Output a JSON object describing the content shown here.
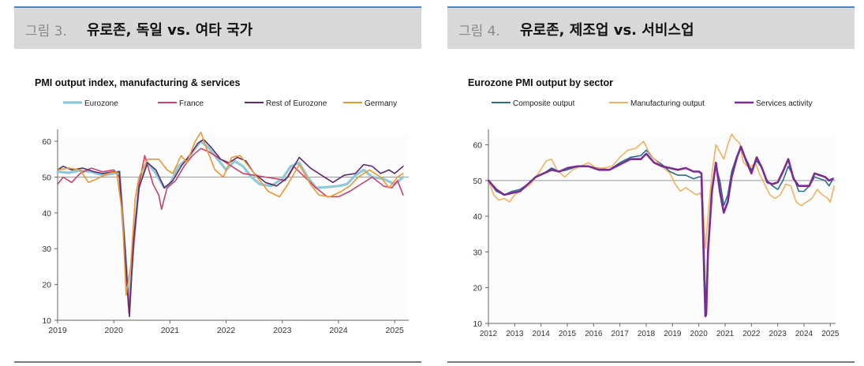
{
  "figures": [
    {
      "number_label": "그림 3.",
      "title": "유로존, 독일 vs. 여타 국가"
    },
    {
      "number_label": "그림 4.",
      "title": "유로존, 제조업 vs. 서비스업"
    }
  ],
  "chart_data": [
    {
      "type": "line",
      "title": "PMI output index, manufacturing & services",
      "xlabel": "",
      "ylabel": "",
      "xlim": [
        2019.0,
        2025.25
      ],
      "ylim": [
        10,
        62
      ],
      "yticks": [
        10,
        20,
        30,
        40,
        50,
        60
      ],
      "xticks": [
        2019,
        2020,
        2021,
        2022,
        2023,
        2024,
        2025
      ],
      "reference_line": 50,
      "legend_position": "top",
      "series": [
        {
          "name": "Eurozone",
          "color": "#8ec9d8",
          "width": 3.2,
          "x": [
            2019.0,
            2019.2,
            2019.4,
            2019.6,
            2019.8,
            2020.0,
            2020.1,
            2020.2,
            2020.27,
            2020.35,
            2020.45,
            2020.6,
            2020.75,
            2020.9,
            2021.0,
            2021.15,
            2021.3,
            2021.45,
            2021.55,
            2021.7,
            2021.85,
            2022.0,
            2022.15,
            2022.3,
            2022.45,
            2022.6,
            2022.8,
            2023.0,
            2023.15,
            2023.3,
            2023.45,
            2023.6,
            2023.8,
            2024.0,
            2024.15,
            2024.3,
            2024.45,
            2024.6,
            2024.8,
            2025.0,
            2025.15
          ],
          "y": [
            51.5,
            51.2,
            51.8,
            51.5,
            50.5,
            51,
            51.5,
            30,
            14,
            31,
            48,
            54,
            51,
            47,
            48,
            53,
            55,
            58,
            60,
            58,
            55,
            52,
            54.5,
            53,
            50,
            48,
            47.5,
            49.5,
            53,
            54,
            50,
            47,
            47.2,
            47.5,
            48,
            50.5,
            52,
            50,
            49.5,
            48,
            50
          ]
        },
        {
          "name": "France",
          "color": "#cf3f6c",
          "width": 1.6,
          "x": [
            2019.0,
            2019.1,
            2019.25,
            2019.4,
            2019.6,
            2019.8,
            2020.0,
            2020.1,
            2020.2,
            2020.27,
            2020.35,
            2020.45,
            2020.55,
            2020.7,
            2020.8,
            2020.85,
            2020.95,
            2021.1,
            2021.25,
            2021.4,
            2021.55,
            2021.7,
            2021.9,
            2022.1,
            2022.3,
            2022.5,
            2022.7,
            2022.9,
            2023.05,
            2023.2,
            2023.4,
            2023.6,
            2023.8,
            2024.0,
            2024.2,
            2024.4,
            2024.6,
            2024.8,
            2024.95,
            2025.05,
            2025.15
          ],
          "y": [
            48,
            50,
            48.5,
            51,
            52.5,
            51.5,
            52,
            50,
            28,
            12,
            30,
            48,
            56,
            48,
            45,
            41,
            47,
            49,
            53,
            56,
            58,
            57,
            55,
            53,
            51,
            50.5,
            50,
            49.5,
            49,
            53,
            50,
            47,
            44.5,
            44.5,
            46,
            48,
            50,
            47.5,
            47,
            49,
            45
          ]
        },
        {
          "name": "Rest of Eurozone",
          "color": "#5b2d6e",
          "width": 1.6,
          "x": [
            2019.0,
            2019.1,
            2019.25,
            2019.45,
            2019.65,
            2019.8,
            2020.0,
            2020.1,
            2020.2,
            2020.28,
            2020.35,
            2020.45,
            2020.6,
            2020.75,
            2020.9,
            2021.05,
            2021.2,
            2021.35,
            2021.5,
            2021.6,
            2021.75,
            2021.9,
            2022.05,
            2022.2,
            2022.35,
            2022.5,
            2022.7,
            2022.9,
            2023.1,
            2023.3,
            2023.5,
            2023.7,
            2023.9,
            2024.1,
            2024.3,
            2024.45,
            2024.6,
            2024.75,
            2024.9,
            2025.0,
            2025.15
          ],
          "y": [
            52,
            53,
            52,
            52.5,
            51.5,
            51,
            51.5,
            51.5,
            30,
            11,
            32,
            47,
            54,
            52,
            47,
            49,
            53,
            56,
            59.5,
            60.5,
            58,
            55,
            54,
            55.5,
            54.5,
            51,
            48.5,
            47.5,
            50,
            55.5,
            52.5,
            50.5,
            48.5,
            50.5,
            51,
            53.5,
            53,
            51,
            52,
            51,
            53
          ]
        },
        {
          "name": "Germany",
          "color": "#f0962e",
          "width": 1.6,
          "x": [
            2019.0,
            2019.2,
            2019.4,
            2019.55,
            2019.7,
            2019.9,
            2020.05,
            2020.15,
            2020.22,
            2020.3,
            2020.38,
            2020.45,
            2020.6,
            2020.8,
            2020.95,
            2021.05,
            2021.2,
            2021.3,
            2021.45,
            2021.55,
            2021.65,
            2021.8,
            2021.95,
            2022.1,
            2022.25,
            2022.4,
            2022.55,
            2022.75,
            2022.95,
            2023.1,
            2023.3,
            2023.5,
            2023.65,
            2023.85,
            2024.05,
            2024.2,
            2024.35,
            2024.55,
            2024.75,
            2024.9,
            2025.05,
            2025.15
          ],
          "y": [
            52,
            52.5,
            52,
            48.5,
            49.5,
            51,
            51.5,
            40,
            17,
            25,
            44,
            50,
            55,
            55,
            52,
            51,
            56,
            54,
            60,
            62.5,
            58,
            52,
            50,
            55.5,
            56,
            53,
            50,
            46,
            44.5,
            48,
            53.5,
            48,
            45,
            44.5,
            46,
            47.5,
            50,
            52,
            50,
            47,
            50,
            51
          ]
        }
      ]
    },
    {
      "type": "line",
      "title": "Eurozone PMI output by sector",
      "xlabel": "",
      "ylabel": "",
      "xlim": [
        2012.0,
        2025.2
      ],
      "ylim": [
        10,
        63
      ],
      "yticks": [
        10,
        20,
        30,
        40,
        50,
        60
      ],
      "xticks": [
        2012,
        2013,
        2014,
        2015,
        2016,
        2017,
        2018,
        2019,
        2020,
        2021,
        2022,
        2023,
        2024,
        2025
      ],
      "reference_line": 50,
      "legend_position": "top",
      "series": [
        {
          "name": "Composite output",
          "color": "#2a6f8f",
          "width": 1.6,
          "x": [
            2012.0,
            2012.3,
            2012.6,
            2012.9,
            2013.2,
            2013.5,
            2013.8,
            2014.1,
            2014.4,
            2014.7,
            2015.0,
            2015.4,
            2015.8,
            2016.2,
            2016.6,
            2017.0,
            2017.4,
            2017.8,
            2018.0,
            2018.3,
            2018.6,
            2018.9,
            2019.2,
            2019.5,
            2019.8,
            2020.0,
            2020.1,
            2020.2,
            2020.27,
            2020.35,
            2020.5,
            2020.65,
            2020.8,
            2020.95,
            2021.1,
            2021.25,
            2021.45,
            2021.6,
            2021.8,
            2022.0,
            2022.2,
            2022.4,
            2022.6,
            2022.8,
            2023.0,
            2023.2,
            2023.4,
            2023.6,
            2023.8,
            2024.0,
            2024.2,
            2024.4,
            2024.6,
            2024.8,
            2024.95,
            2025.1
          ],
          "y": [
            50,
            47,
            46,
            47,
            47.5,
            49,
            51,
            52,
            53.5,
            52.5,
            53,
            54,
            54,
            53.5,
            53,
            55,
            56.5,
            57,
            58.5,
            56,
            54.5,
            52.5,
            51.5,
            51.5,
            50.5,
            51,
            51,
            30,
            13.5,
            32,
            48,
            54,
            50,
            43,
            46,
            52.5,
            57,
            59,
            56,
            53,
            55.5,
            53.5,
            50,
            48.5,
            47.5,
            50,
            54,
            51,
            47,
            47,
            48.5,
            51,
            50.5,
            50,
            48.5,
            50.5
          ]
        },
        {
          "name": "Manufacturing output",
          "color": "#f2b25f",
          "width": 1.6,
          "x": [
            2012.0,
            2012.2,
            2012.4,
            2012.6,
            2012.8,
            2013.0,
            2013.3,
            2013.6,
            2013.9,
            2014.2,
            2014.4,
            2014.6,
            2014.9,
            2015.2,
            2015.5,
            2015.8,
            2016.1,
            2016.4,
            2016.7,
            2017.0,
            2017.3,
            2017.6,
            2017.9,
            2018.1,
            2018.3,
            2018.6,
            2018.9,
            2019.1,
            2019.3,
            2019.5,
            2019.7,
            2019.9,
            2020.05,
            2020.15,
            2020.25,
            2020.35,
            2020.5,
            2020.65,
            2020.8,
            2020.95,
            2021.1,
            2021.25,
            2021.4,
            2021.55,
            2021.7,
            2021.85,
            2022.0,
            2022.15,
            2022.3,
            2022.5,
            2022.7,
            2022.9,
            2023.1,
            2023.3,
            2023.5,
            2023.7,
            2023.9,
            2024.1,
            2024.3,
            2024.5,
            2024.7,
            2024.9,
            2025.0,
            2025.15
          ],
          "y": [
            50,
            46,
            44.5,
            45,
            44,
            46,
            47.5,
            49,
            52,
            55.5,
            56,
            53,
            51,
            53,
            54,
            55,
            53.5,
            53.5,
            54,
            56.5,
            58.5,
            59,
            61,
            58,
            56,
            54,
            52,
            49,
            47,
            48,
            47,
            46,
            46.5,
            44,
            31,
            40,
            52,
            60,
            58,
            56,
            60,
            63,
            61.5,
            60.5,
            55,
            54,
            54,
            55,
            52,
            49,
            46,
            45,
            46,
            49,
            48.5,
            44,
            43,
            44,
            45,
            47.5,
            46,
            45,
            44,
            48.5
          ]
        },
        {
          "name": "Services activity",
          "color": "#7b2c93",
          "width": 2.6,
          "x": [
            2012.0,
            2012.3,
            2012.6,
            2012.9,
            2013.2,
            2013.5,
            2013.8,
            2014.1,
            2014.4,
            2014.7,
            2015.0,
            2015.4,
            2015.8,
            2016.2,
            2016.6,
            2017.0,
            2017.4,
            2017.8,
            2018.0,
            2018.3,
            2018.6,
            2018.9,
            2019.2,
            2019.5,
            2019.8,
            2020.0,
            2020.1,
            2020.2,
            2020.25,
            2020.28,
            2020.35,
            2020.5,
            2020.65,
            2020.8,
            2020.95,
            2021.1,
            2021.25,
            2021.45,
            2021.6,
            2021.8,
            2022.0,
            2022.2,
            2022.4,
            2022.6,
            2022.8,
            2023.0,
            2023.2,
            2023.4,
            2023.6,
            2023.8,
            2024.0,
            2024.2,
            2024.4,
            2024.6,
            2024.8,
            2024.95,
            2025.1
          ],
          "y": [
            50,
            47.5,
            46,
            46.5,
            47,
            49,
            51,
            52,
            53,
            52.5,
            53.5,
            54,
            54,
            53,
            53,
            54.5,
            56,
            56,
            57.5,
            55,
            54,
            53.5,
            53,
            53.5,
            52.5,
            52.5,
            52,
            25,
            12,
            12.5,
            30,
            47,
            55,
            47,
            41,
            44,
            51,
            56.5,
            59.5,
            55.5,
            52,
            56.5,
            53.5,
            49.5,
            49,
            49.5,
            52.5,
            56,
            50.5,
            48.5,
            48.5,
            48.5,
            52,
            51.5,
            51,
            50,
            50.5
          ]
        }
      ]
    }
  ]
}
